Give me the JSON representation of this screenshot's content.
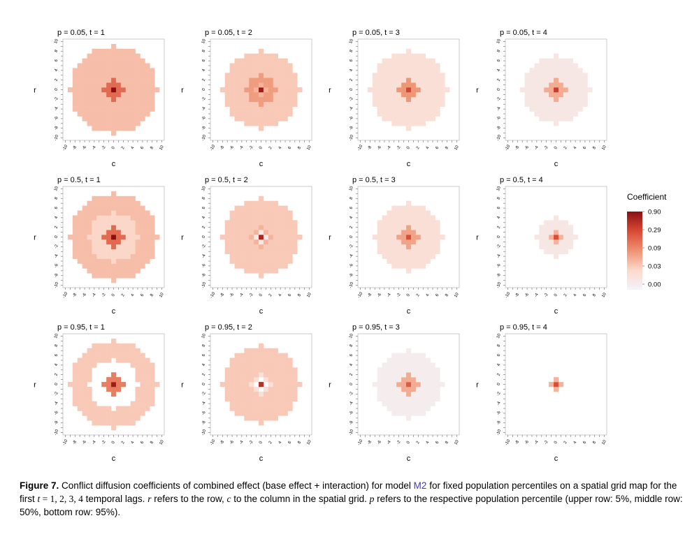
{
  "figure": {
    "x_axis_label": "c",
    "y_axis_label": "r",
    "tick_labels": [
      "10",
      "8",
      "6",
      "4",
      "2",
      "0",
      "-2",
      "-4",
      "-6",
      "-8",
      "-10"
    ],
    "x_tick_labels": [
      "-10",
      "-8",
      "-6",
      "-4",
      "-2",
      "0",
      "2",
      "4",
      "6",
      "8",
      "10"
    ],
    "panel_titles": [
      [
        "p = 0.05, t = 1",
        "p = 0.05, t = 2",
        "p = 0.05, t = 3",
        "p = 0.05, t = 4"
      ],
      [
        "p = 0.5, t = 1",
        "p = 0.5, t = 2",
        "p = 0.5, t = 3",
        "p = 0.5, t = 4"
      ],
      [
        "p = 0.95, t = 1",
        "p = 0.95, t = 2",
        "p = 0.95, t = 3",
        "p = 0.95, t = 4"
      ]
    ],
    "legend": {
      "title": "Coefficient",
      "labels": [
        "0.90",
        "0.29",
        "0.09",
        "0.03",
        "0.00"
      ],
      "colors": [
        "#8b0f12",
        "#d94a35",
        "#ee9272",
        "#fbd9cb",
        "#f3f3fb"
      ]
    }
  },
  "chart_data": {
    "type": "heatmap",
    "grid": {
      "r": [
        -10,
        10
      ],
      "c": [
        -10,
        10
      ]
    },
    "color_scale": {
      "title": "Coefficient",
      "breaks": [
        0.0,
        0.03,
        0.09,
        0.29,
        0.9
      ]
    },
    "panels": [
      {
        "title": "p = 0.05, t = 1",
        "center": 0.9,
        "ring_radii": [
          2,
          9
        ],
        "ring_levels": [
          0.2,
          0.05
        ]
      },
      {
        "title": "p = 0.05, t = 2",
        "center": 0.7,
        "ring_radii": [
          1,
          3,
          8
        ],
        "ring_levels": [
          0.06,
          0.09,
          0.04
        ]
      },
      {
        "title": "p = 0.05, t = 3",
        "center": 0.35,
        "ring_radii": [
          2,
          8
        ],
        "ring_levels": [
          0.1,
          0.02
        ]
      },
      {
        "title": "p = 0.05, t = 4",
        "center": 0.4,
        "ring_radii": [
          2,
          7
        ],
        "ring_levels": [
          0.07,
          0.01
        ]
      },
      {
        "title": "p = 0.5, t = 1",
        "center": 0.9,
        "ring_radii": [
          2,
          5,
          9
        ],
        "ring_levels": [
          0.2,
          0.03,
          0.05
        ]
      },
      {
        "title": "p = 0.5, t = 2",
        "center": 0.6,
        "ring_radii": [
          1,
          2,
          8
        ],
        "ring_levels": [
          0.01,
          0.06,
          0.04
        ]
      },
      {
        "title": "p = 0.5, t = 3",
        "center": 0.3,
        "ring_radii": [
          2,
          7
        ],
        "ring_levels": [
          0.08,
          0.02
        ]
      },
      {
        "title": "p = 0.5, t = 4",
        "center": 0.3,
        "ring_radii": [
          1,
          4
        ],
        "ring_levels": [
          0.06,
          0.01
        ]
      },
      {
        "title": "p = 0.95, t = 1",
        "center": 0.7,
        "ring_radii": [
          2,
          5,
          9
        ],
        "ring_levels": [
          0.15,
          0.0,
          0.04
        ]
      },
      {
        "title": "p = 0.95, t = 2",
        "center": 0.5,
        "ring_radii": [
          1,
          2,
          8
        ],
        "ring_levels": [
          0.0,
          0.02,
          0.04
        ]
      },
      {
        "title": "p = 0.95, t = 3",
        "center": 0.25,
        "ring_radii": [
          2,
          7
        ],
        "ring_levels": [
          0.07,
          0.005
        ]
      },
      {
        "title": "p = 0.95, t = 4",
        "center": 0.3,
        "ring_radii": [
          1,
          4
        ],
        "ring_levels": [
          0.06,
          0.0
        ]
      }
    ]
  },
  "caption": {
    "label": "Figure 7.",
    "part1": " Conflict diffusion coefficients of combined effect (base effect + interaction) for model ",
    "model": "M2",
    "part2": " for fixed population percentiles on a spatial grid map for the first ",
    "t_var": "t",
    "t_vals": " = 1, 2, 3, 4",
    "part3": " temporal lags. ",
    "r_var": "r",
    "part4": " refers to the row, ",
    "c_var": "c",
    "part5": " to the column in the spatial grid. ",
    "p_var": "p",
    "part6": " refers to the respective population percentile (upper row: 5%, middle row: 50%, bottom row: 95%)."
  }
}
